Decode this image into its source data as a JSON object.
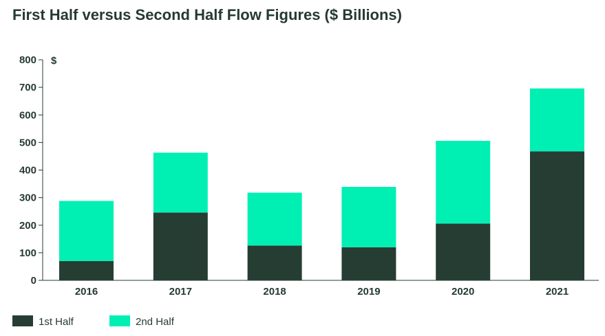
{
  "title": "First Half versus Second Half Flow Figures ($ Billions)",
  "chart_data": {
    "type": "bar",
    "stacked": true,
    "title": "First Half versus Second Half Flow Figures ($ Billions)",
    "y_unit_label": "$",
    "categories": [
      "2016",
      "2017",
      "2018",
      "2019",
      "2020",
      "2021"
    ],
    "series": [
      {
        "name": "1st Half",
        "color": "#263d33",
        "values": [
          70,
          246,
          126,
          120,
          206,
          468
        ]
      },
      {
        "name": "2nd Half",
        "color": "#00f0b4",
        "values": [
          218,
          217,
          192,
          219,
          300,
          228
        ]
      }
    ],
    "ylim": [
      0,
      800
    ],
    "yticks": [
      0,
      100,
      200,
      300,
      400,
      500,
      600,
      700,
      800
    ],
    "grid": false,
    "legend_position": "bottom-left",
    "axis_color": "#263a30"
  }
}
